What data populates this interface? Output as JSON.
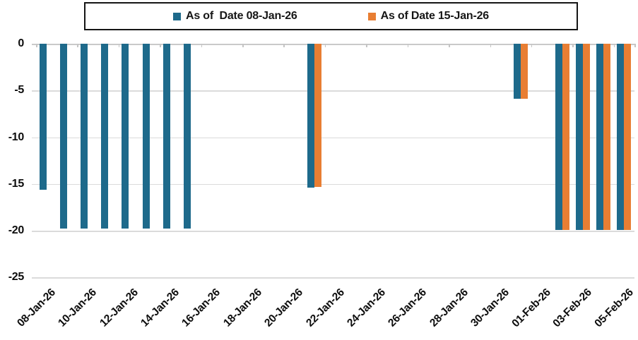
{
  "legend": {
    "items": [
      {
        "label": "As of  Date 08-Jan-26",
        "color": "#1E6A8B"
      },
      {
        "label": "As of Date 15-Jan-26",
        "color": "#E87E33"
      }
    ]
  },
  "chart_data": {
    "type": "bar",
    "title": "",
    "xlabel": "",
    "ylabel": "",
    "ylim": [
      -25,
      0
    ],
    "yticks": [
      0,
      -5,
      -10,
      -15,
      -20,
      -25
    ],
    "grid": true,
    "legend_position": "top-center",
    "categories": [
      "08-Jan-26",
      "09-Jan-26",
      "10-Jan-26",
      "11-Jan-26",
      "12-Jan-26",
      "13-Jan-26",
      "14-Jan-26",
      "15-Jan-26",
      "16-Jan-26",
      "17-Jan-26",
      "18-Jan-26",
      "19-Jan-26",
      "20-Jan-26",
      "21-Jan-26",
      "22-Jan-26",
      "23-Jan-26",
      "24-Jan-26",
      "25-Jan-26",
      "26-Jan-26",
      "27-Jan-26",
      "28-Jan-26",
      "29-Jan-26",
      "30-Jan-26",
      "31-Jan-26",
      "01-Feb-26",
      "02-Feb-26",
      "03-Feb-26",
      "04-Feb-26",
      "05-Feb-26"
    ],
    "x_tick_labels": [
      "08-Jan-26",
      "10-Jan-26",
      "12-Jan-26",
      "14-Jan-26",
      "16-Jan-26",
      "18-Jan-26",
      "20-Jan-26",
      "22-Jan-26",
      "24-Jan-26",
      "26-Jan-26",
      "28-Jan-26",
      "30-Jan-26",
      "01-Feb-26",
      "03-Feb-26",
      "05-Feb-26"
    ],
    "series": [
      {
        "name": "As of  Date 08-Jan-26",
        "color": "#1E6A8B",
        "values": [
          -15.6,
          -19.8,
          -19.8,
          -19.8,
          -19.8,
          -19.8,
          -19.8,
          -19.8,
          null,
          null,
          null,
          null,
          null,
          -15.4,
          null,
          null,
          null,
          null,
          null,
          null,
          null,
          null,
          null,
          -5.9,
          null,
          -19.9,
          -19.9,
          -19.9,
          -19.9
        ]
      },
      {
        "name": "As of Date 15-Jan-26",
        "color": "#E87E33",
        "values": [
          null,
          null,
          null,
          null,
          null,
          null,
          null,
          null,
          null,
          null,
          null,
          null,
          null,
          -15.3,
          null,
          null,
          null,
          null,
          null,
          null,
          null,
          null,
          null,
          -5.9,
          null,
          -19.9,
          -19.9,
          -19.9,
          -19.9
        ]
      }
    ]
  }
}
